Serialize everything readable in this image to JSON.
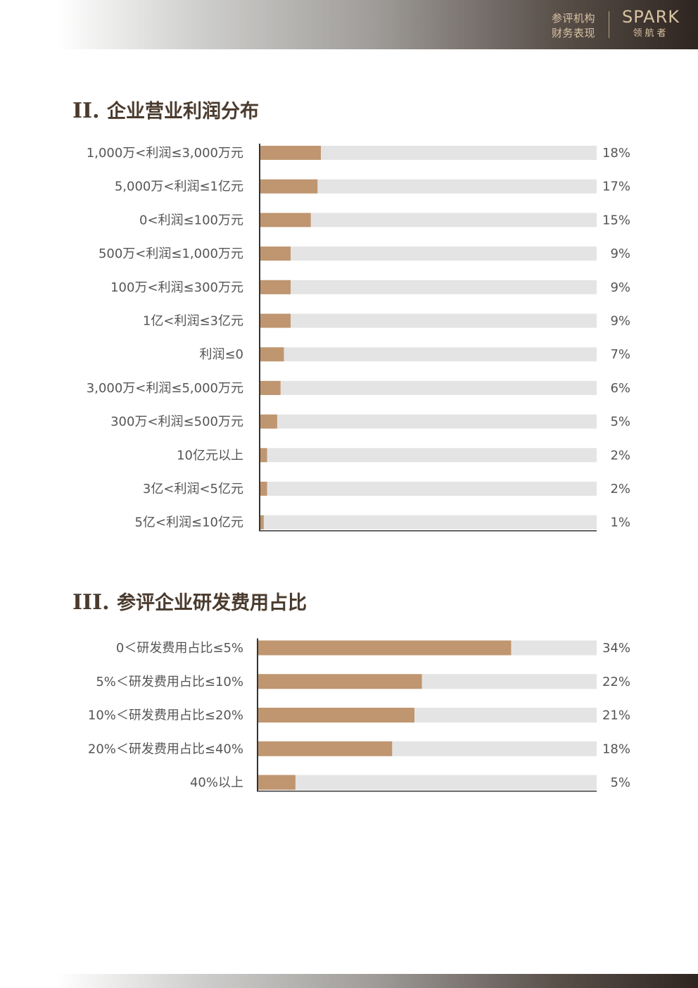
{
  "header": {
    "section_line1": "参评机构",
    "section_line2": "财务表现",
    "brand_logo": "SPARK",
    "brand_sub": "领航者",
    "text_color": "#d8c3a3"
  },
  "colors": {
    "bar": "#bf9670",
    "track": "#e4e4e4",
    "axis": "#333333"
  },
  "sections": [
    {
      "number": "II.",
      "title": "企业营业利润分布"
    },
    {
      "number": "III.",
      "title": "参评企业研发费用占比"
    }
  ],
  "chart_data": [
    {
      "type": "bar",
      "orientation": "horizontal",
      "title": "企业营业利润分布",
      "categories": [
        "1,000万<利润≤3,000万元",
        "5,000万<利润≤1亿元",
        "0<利润≤100万元",
        "500万<利润≤1,000万元",
        "100万<利润≤300万元",
        "1亿<利润≤3亿元",
        "利润≤0",
        "3,000万<利润≤5,000万元",
        "300万<利润≤500万元",
        "10亿元以上",
        "3亿<利润<5亿元",
        "5亿<利润≤10亿元"
      ],
      "values": [
        18,
        17,
        15,
        9,
        9,
        9,
        7,
        6,
        5,
        2,
        2,
        1
      ],
      "value_labels": [
        "18%",
        "17%",
        "15%",
        "9%",
        "9%",
        "9%",
        "7%",
        "6%",
        "5%",
        "2%",
        "2%",
        "1%"
      ],
      "unit": "%",
      "xlim": [
        0,
        100
      ]
    },
    {
      "type": "bar",
      "orientation": "horizontal",
      "title": "参评企业研发费用占比",
      "categories": [
        "0＜研发费用占比≤5%",
        "5%＜研发费用占比≤10%",
        "10%＜研发费用占比≤20%",
        "20%＜研发费用占比≤40%",
        "40%以上"
      ],
      "values": [
        34,
        22,
        21,
        18,
        5
      ],
      "value_labels": [
        "34%",
        "22%",
        "21%",
        "18%",
        "5%"
      ],
      "unit": "%",
      "xlim": [
        0,
        45.5
      ]
    }
  ]
}
